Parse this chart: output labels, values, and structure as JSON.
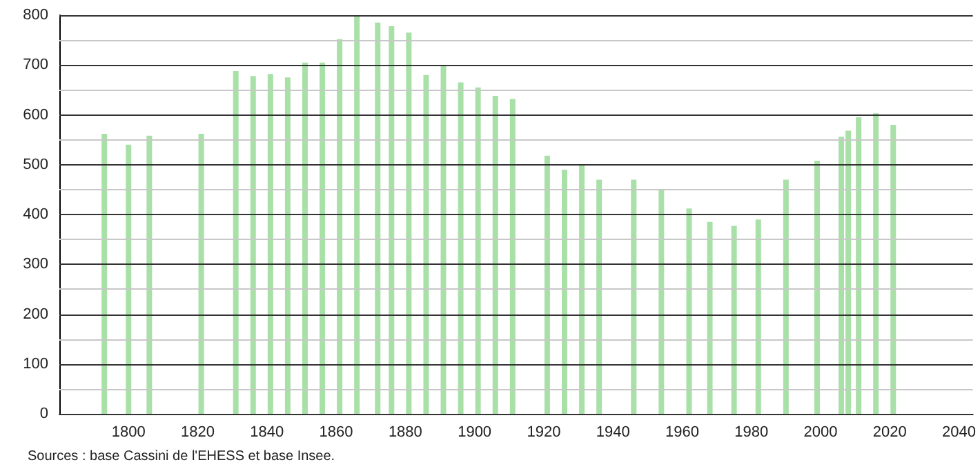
{
  "chart_data": {
    "type": "bar",
    "x": [
      1793,
      1800,
      1806,
      1821,
      1831,
      1836,
      1841,
      1846,
      1851,
      1856,
      1861,
      1866,
      1872,
      1876,
      1881,
      1886,
      1891,
      1896,
      1901,
      1906,
      1911,
      1921,
      1926,
      1931,
      1936,
      1946,
      1954,
      1962,
      1968,
      1975,
      1982,
      1990,
      1999,
      2006,
      2008,
      2011,
      2016,
      2021
    ],
    "values": [
      562,
      540,
      558,
      562,
      688,
      678,
      682,
      675,
      705,
      705,
      752,
      800,
      785,
      778,
      765,
      680,
      700,
      665,
      655,
      638,
      632,
      518,
      490,
      500,
      470,
      470,
      450,
      412,
      385,
      377,
      390,
      470,
      508,
      556,
      568,
      595,
      603,
      580
    ],
    "color": "#a8e0a8",
    "xlim": [
      1780,
      2044
    ],
    "xticks": [
      1800,
      1820,
      1840,
      1860,
      1880,
      1900,
      1920,
      1940,
      1960,
      1980,
      2000,
      2020,
      2040
    ],
    "ylim": [
      0,
      800
    ],
    "yticks": [
      0,
      {
        "value": 50,
        "label": null
      },
      100,
      {
        "value": 150,
        "label": null
      },
      200,
      {
        "value": 250,
        "label": null
      },
      300,
      {
        "value": 350,
        "label": null
      },
      400,
      {
        "value": 450,
        "label": null
      },
      500,
      {
        "value": 550,
        "label": null
      },
      600,
      {
        "value": 650,
        "label": null
      },
      700,
      {
        "value": 750,
        "label": null
      },
      800
    ],
    "grid": "y",
    "annotations": [
      "Sources : base Cassini de l'EHESS et base Insee."
    ]
  }
}
